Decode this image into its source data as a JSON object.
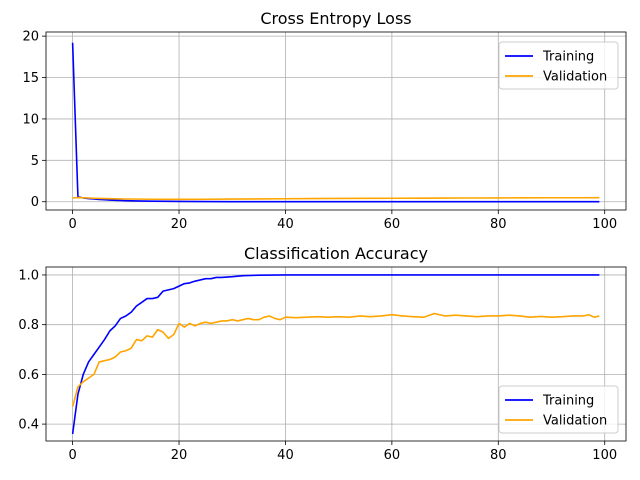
{
  "chart_data": [
    {
      "type": "line",
      "title": "Cross Entropy Loss",
      "xlabel": "",
      "ylabel": "",
      "xlim": [
        -5,
        104
      ],
      "ylim": [
        -1,
        20.5
      ],
      "xticks": [
        0,
        20,
        40,
        60,
        80,
        100
      ],
      "yticks": [
        0,
        5,
        10,
        15,
        20
      ],
      "grid": true,
      "legend": "top-right",
      "series": [
        {
          "name": "Training",
          "color": "#0000ff",
          "x": [
            0,
            1,
            2,
            3,
            4,
            5,
            6,
            7,
            8,
            9,
            10,
            12,
            15,
            18,
            20,
            25,
            30,
            35,
            40,
            45,
            50,
            55,
            60,
            65,
            70,
            75,
            80,
            85,
            90,
            95,
            99
          ],
          "y": [
            19.2,
            0.6,
            0.45,
            0.38,
            0.33,
            0.28,
            0.24,
            0.2,
            0.17,
            0.15,
            0.13,
            0.1,
            0.07,
            0.05,
            0.04,
            0.02,
            0.01,
            0.01,
            0.005,
            0.005,
            0.003,
            0.003,
            0.002,
            0.002,
            0.002,
            0.002,
            0.001,
            0.001,
            0.001,
            0.001,
            0.001
          ]
        },
        {
          "name": "Validation",
          "color": "#ffa500",
          "x": [
            0,
            1,
            2,
            4,
            6,
            8,
            10,
            15,
            20,
            25,
            30,
            35,
            40,
            45,
            50,
            55,
            60,
            65,
            70,
            75,
            80,
            85,
            90,
            95,
            99
          ],
          "y": [
            0.45,
            0.5,
            0.48,
            0.42,
            0.38,
            0.35,
            0.33,
            0.3,
            0.29,
            0.3,
            0.32,
            0.34,
            0.36,
            0.38,
            0.4,
            0.41,
            0.42,
            0.43,
            0.44,
            0.45,
            0.46,
            0.47,
            0.48,
            0.48,
            0.49
          ]
        }
      ]
    },
    {
      "type": "line",
      "title": "Classification Accuracy",
      "xlabel": "",
      "ylabel": "",
      "xlim": [
        -5,
        104
      ],
      "ylim": [
        0.332,
        1.032
      ],
      "xticks": [
        0,
        20,
        40,
        60,
        80,
        100
      ],
      "yticks": [
        0.4,
        0.6,
        0.8,
        1.0
      ],
      "grid": true,
      "legend": "bottom-right",
      "series": [
        {
          "name": "Training",
          "color": "#0000ff",
          "x": [
            0,
            1,
            2,
            3,
            4,
            5,
            6,
            7,
            8,
            9,
            10,
            11,
            12,
            13,
            14,
            15,
            16,
            17,
            18,
            19,
            20,
            21,
            22,
            23,
            24,
            25,
            26,
            27,
            28,
            30,
            32,
            35,
            40,
            50,
            60,
            70,
            80,
            90,
            99
          ],
          "y": [
            0.36,
            0.52,
            0.6,
            0.65,
            0.68,
            0.71,
            0.74,
            0.775,
            0.795,
            0.825,
            0.835,
            0.85,
            0.875,
            0.89,
            0.905,
            0.905,
            0.91,
            0.935,
            0.94,
            0.945,
            0.955,
            0.965,
            0.968,
            0.975,
            0.98,
            0.985,
            0.985,
            0.99,
            0.99,
            0.993,
            0.997,
            0.999,
            1.0,
            1.0,
            1.0,
            1.0,
            1.0,
            1.0,
            1.0
          ]
        },
        {
          "name": "Validation",
          "color": "#ffa500",
          "x": [
            0,
            1,
            2,
            3,
            4,
            5,
            6,
            7,
            8,
            9,
            10,
            11,
            12,
            13,
            14,
            15,
            16,
            17,
            18,
            19,
            20,
            21,
            22,
            23,
            24,
            25,
            26,
            27,
            28,
            29,
            30,
            31,
            32,
            33,
            34,
            35,
            36,
            37,
            38,
            39,
            40,
            42,
            44,
            46,
            48,
            50,
            52,
            54,
            56,
            58,
            60,
            62,
            64,
            66,
            68,
            70,
            72,
            74,
            76,
            78,
            80,
            82,
            84,
            86,
            88,
            90,
            92,
            94,
            96,
            97,
            98,
            99
          ],
          "y": [
            0.47,
            0.55,
            0.57,
            0.585,
            0.6,
            0.65,
            0.655,
            0.66,
            0.67,
            0.69,
            0.695,
            0.705,
            0.74,
            0.735,
            0.755,
            0.75,
            0.78,
            0.77,
            0.745,
            0.76,
            0.805,
            0.79,
            0.805,
            0.795,
            0.805,
            0.81,
            0.805,
            0.81,
            0.815,
            0.815,
            0.82,
            0.815,
            0.82,
            0.825,
            0.82,
            0.82,
            0.83,
            0.835,
            0.825,
            0.82,
            0.83,
            0.828,
            0.83,
            0.832,
            0.83,
            0.832,
            0.83,
            0.835,
            0.832,
            0.835,
            0.84,
            0.835,
            0.832,
            0.83,
            0.845,
            0.835,
            0.838,
            0.835,
            0.832,
            0.835,
            0.835,
            0.838,
            0.835,
            0.83,
            0.833,
            0.83,
            0.832,
            0.835,
            0.835,
            0.84,
            0.83,
            0.835
          ]
        }
      ]
    }
  ]
}
